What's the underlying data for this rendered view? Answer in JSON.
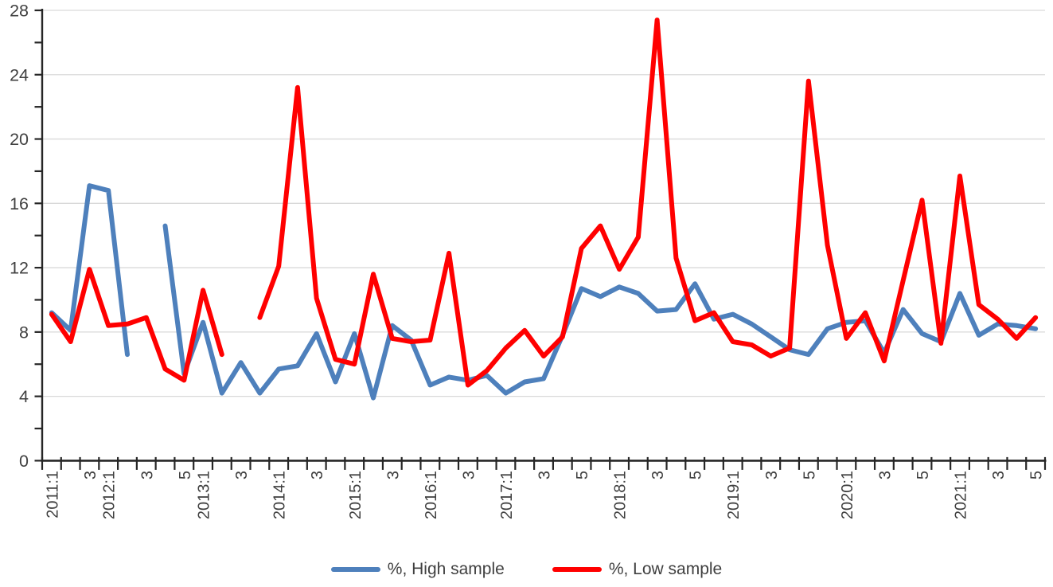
{
  "chart_data": {
    "type": "line",
    "title": "",
    "xlabel": "",
    "ylabel": "",
    "ylim": [
      0,
      28
    ],
    "y_ticks": [
      0,
      4,
      8,
      12,
      16,
      20,
      24,
      28
    ],
    "y_minor_step": 2,
    "grid": true,
    "legend_position": "bottom",
    "x_tick_labels": [
      "2011:1",
      "",
      "3",
      "2012:1",
      "",
      "3",
      "",
      "5",
      "2013:1",
      "",
      "3",
      "",
      "2014:1",
      "",
      "3",
      "",
      "2015:1",
      "",
      "3",
      "",
      "2016:1",
      "",
      "3",
      "",
      "2017:1",
      "",
      "3",
      "",
      "5",
      "",
      "2018:1",
      "",
      "3",
      "",
      "5",
      "",
      "2019:1",
      "",
      "3",
      "",
      "5",
      "",
      "2020:1",
      "",
      "3",
      "",
      "5",
      "",
      "2021:1",
      "",
      "3",
      "",
      "5"
    ],
    "series": [
      {
        "name": "%, High sample",
        "color": "#4E80BC",
        "values": [
          9.2,
          8.1,
          17.1,
          16.8,
          6.6,
          null,
          14.6,
          5.4,
          8.6,
          4.2,
          6.1,
          4.2,
          5.7,
          5.9,
          7.9,
          4.9,
          7.9,
          3.9,
          8.4,
          7.5,
          4.7,
          5.2,
          5.0,
          5.3,
          4.2,
          4.9,
          5.1,
          7.8,
          10.7,
          10.2,
          10.8,
          10.4,
          9.3,
          9.4,
          11.0,
          8.8,
          9.1,
          8.5,
          7.7,
          6.9,
          6.6,
          8.2,
          8.6,
          8.7,
          6.7,
          9.4,
          7.9,
          7.4,
          10.4,
          7.8,
          8.5,
          8.4,
          8.2
        ]
      },
      {
        "name": "%, Low sample",
        "color": "#FF0000",
        "values": [
          9.1,
          7.4,
          11.9,
          8.4,
          8.5,
          8.9,
          5.7,
          5.0,
          10.6,
          6.6,
          null,
          8.9,
          12.1,
          23.2,
          10.1,
          6.3,
          6.0,
          11.6,
          7.6,
          7.4,
          7.5,
          12.9,
          4.7,
          5.6,
          7.0,
          8.1,
          6.5,
          7.7,
          13.2,
          14.6,
          11.9,
          13.9,
          27.4,
          12.6,
          8.7,
          9.2,
          7.4,
          7.2,
          6.5,
          7.0,
          23.6,
          13.4,
          7.6,
          9.2,
          6.2,
          11.2,
          16.2,
          7.3,
          17.7,
          9.7,
          8.8,
          7.6,
          8.9
        ]
      }
    ]
  },
  "colors": {
    "background": "#FFFFFF",
    "gridline": "#D9D9D9",
    "axis": "#262626",
    "tick_text": "#404040",
    "high_series": "#4E80BC",
    "low_series": "#FF0000"
  }
}
